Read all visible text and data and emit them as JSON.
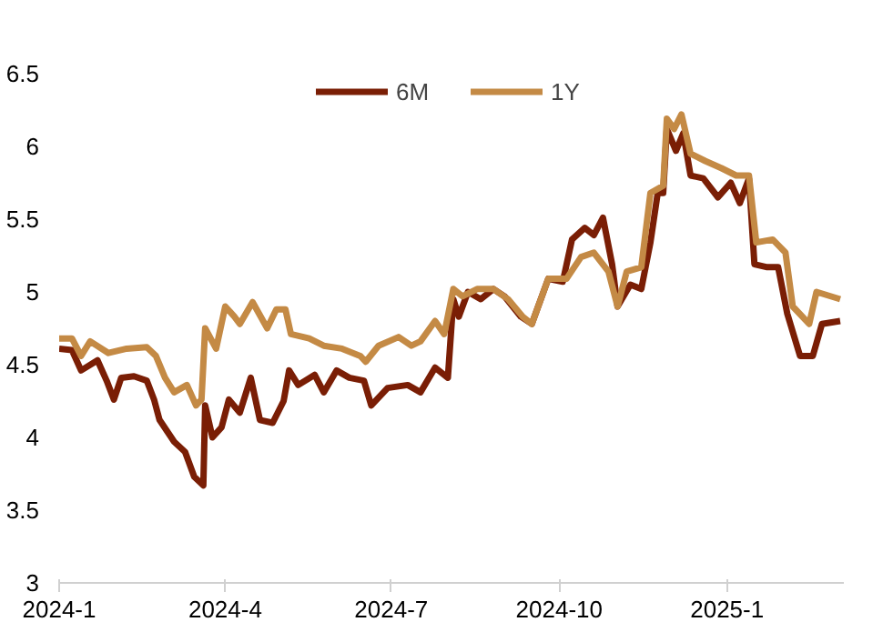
{
  "chart_data": {
    "type": "line",
    "legend": "top",
    "grid": false,
    "line_style": "solid",
    "marker": "none",
    "xlim": [
      "2024-01-01",
      "2025-03-06"
    ],
    "xticks": [
      {
        "value": "2024-01-01",
        "label": "2024-1"
      },
      {
        "value": "2024-04-01",
        "label": "2024-4"
      },
      {
        "value": "2024-07-01",
        "label": "2024-7"
      },
      {
        "value": "2024-10-01",
        "label": "2024-10"
      },
      {
        "value": "2025-01-01",
        "label": "2025-1"
      }
    ],
    "ylim": [
      3,
      6.5
    ],
    "yticks": [
      3,
      3.5,
      4,
      4.5,
      5,
      5.5,
      6,
      6.5
    ],
    "series": [
      {
        "name": "6M",
        "color": "#7a1e05",
        "x": [
          "2024-01-01",
          "2024-01-08",
          "2024-01-13",
          "2024-01-22",
          "2024-01-27",
          "2024-01-31",
          "2024-02-04",
          "2024-02-11",
          "2024-02-18",
          "2024-02-22",
          "2024-02-25",
          "2024-03-04",
          "2024-03-10",
          "2024-03-15",
          "2024-03-20",
          "2024-03-21",
          "2024-03-25",
          "2024-03-30",
          "2024-04-03",
          "2024-04-09",
          "2024-04-15",
          "2024-04-20",
          "2024-04-27",
          "2024-05-03",
          "2024-05-06",
          "2024-05-11",
          "2024-05-20",
          "2024-05-25",
          "2024-06-01",
          "2024-06-08",
          "2024-06-16",
          "2024-06-20",
          "2024-06-29",
          "2024-07-10",
          "2024-07-17",
          "2024-07-25",
          "2024-08-01",
          "2024-08-04",
          "2024-08-07",
          "2024-08-12",
          "2024-08-19",
          "2024-08-26",
          "2024-09-01",
          "2024-09-10",
          "2024-09-16",
          "2024-09-25",
          "2024-10-03",
          "2024-10-08",
          "2024-10-15",
          "2024-10-20",
          "2024-10-25",
          "2024-10-30",
          "2024-11-02",
          "2024-11-09",
          "2024-11-15",
          "2024-11-20",
          "2024-11-24",
          "2024-11-27",
          "2024-11-29",
          "2024-12-04",
          "2024-12-08",
          "2024-12-12",
          "2024-12-19",
          "2024-12-27",
          "2025-01-03",
          "2025-01-08",
          "2025-01-13",
          "2025-01-16",
          "2025-01-23",
          "2025-01-29",
          "2025-02-03",
          "2025-02-10",
          "2025-02-17",
          "2025-02-22",
          "2025-03-04"
        ],
        "values": [
          4.61,
          4.6,
          4.46,
          4.53,
          4.39,
          4.26,
          4.41,
          4.42,
          4.39,
          4.26,
          4.12,
          3.97,
          3.9,
          3.73,
          3.67,
          4.22,
          4.0,
          4.07,
          4.26,
          4.17,
          4.41,
          4.12,
          4.1,
          4.25,
          4.46,
          4.36,
          4.43,
          4.31,
          4.46,
          4.41,
          4.39,
          4.22,
          4.34,
          4.36,
          4.31,
          4.48,
          4.41,
          4.95,
          4.83,
          5.0,
          4.95,
          5.02,
          4.97,
          4.83,
          4.78,
          5.09,
          5.07,
          5.36,
          5.44,
          5.39,
          5.51,
          5.19,
          4.9,
          5.05,
          5.02,
          5.34,
          5.68,
          5.68,
          6.12,
          5.97,
          6.09,
          5.8,
          5.78,
          5.65,
          5.75,
          5.61,
          5.78,
          5.19,
          5.17,
          5.17,
          4.85,
          4.56,
          4.56,
          4.78,
          4.8
        ]
      },
      {
        "name": "1Y",
        "color": "#c48a45",
        "x": [
          "2024-01-01",
          "2024-01-08",
          "2024-01-13",
          "2024-01-18",
          "2024-01-28",
          "2024-02-07",
          "2024-02-18",
          "2024-02-23",
          "2024-02-28",
          "2024-03-04",
          "2024-03-11",
          "2024-03-16",
          "2024-03-19",
          "2024-03-21",
          "2024-03-27",
          "2024-04-01",
          "2024-04-06",
          "2024-04-09",
          "2024-04-16",
          "2024-04-24",
          "2024-04-29",
          "2024-05-04",
          "2024-05-07",
          "2024-05-17",
          "2024-05-25",
          "2024-06-04",
          "2024-06-14",
          "2024-06-17",
          "2024-06-24",
          "2024-07-05",
          "2024-07-12",
          "2024-07-17",
          "2024-07-25",
          "2024-07-30",
          "2024-08-04",
          "2024-08-09",
          "2024-08-17",
          "2024-08-26",
          "2024-09-03",
          "2024-09-11",
          "2024-09-16",
          "2024-09-25",
          "2024-10-05",
          "2024-10-13",
          "2024-10-20",
          "2024-10-28",
          "2024-11-02",
          "2024-11-07",
          "2024-11-15",
          "2024-11-20",
          "2024-11-27",
          "2024-11-29",
          "2024-12-03",
          "2024-12-07",
          "2024-12-12",
          "2024-12-20",
          "2024-12-29",
          "2025-01-06",
          "2025-01-13",
          "2025-01-17",
          "2025-01-26",
          "2025-02-02",
          "2025-02-06",
          "2025-02-15",
          "2025-02-19",
          "2025-03-04"
        ],
        "values": [
          4.68,
          4.68,
          4.56,
          4.66,
          4.58,
          4.61,
          4.62,
          4.56,
          4.41,
          4.31,
          4.36,
          4.22,
          4.26,
          4.75,
          4.61,
          4.9,
          4.83,
          4.78,
          4.93,
          4.75,
          4.88,
          4.88,
          4.71,
          4.68,
          4.63,
          4.61,
          4.56,
          4.52,
          4.63,
          4.69,
          4.63,
          4.66,
          4.8,
          4.71,
          5.02,
          4.97,
          5.02,
          5.02,
          4.95,
          4.83,
          4.78,
          5.09,
          5.09,
          5.24,
          5.27,
          5.14,
          4.9,
          5.14,
          5.17,
          5.68,
          5.73,
          6.19,
          6.12,
          6.22,
          5.95,
          5.9,
          5.85,
          5.8,
          5.8,
          5.34,
          5.36,
          5.27,
          4.9,
          4.78,
          5.0,
          4.95
        ]
      }
    ]
  }
}
